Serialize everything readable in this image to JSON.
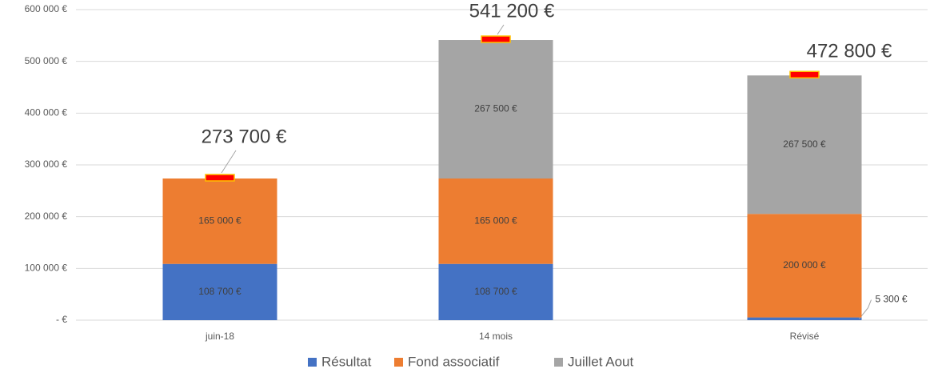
{
  "chart_data": {
    "type": "stacked_bar",
    "categories": [
      "juin-18",
      "14 mois",
      "Révisé"
    ],
    "series": [
      {
        "name": "Résultat",
        "color": "#4472c4",
        "values": [
          108700,
          108700,
          5300
        ],
        "value_labels": [
          "108 700 €",
          "108 700 €",
          "5 300 €"
        ]
      },
      {
        "name": "Fond associatif",
        "color": "#ed7d31",
        "values": [
          165000,
          165000,
          200000
        ],
        "value_labels": [
          "165 000 €",
          "165 000 €",
          "200 000 €"
        ]
      },
      {
        "name": "Juillet Aout",
        "color": "#a5a5a5",
        "values": [
          null,
          267500,
          267500
        ],
        "value_labels": [
          null,
          "267 500 €",
          "267 500 €"
        ]
      }
    ],
    "totals": [
      273700,
      541200,
      472800
    ],
    "totals_labels": [
      "273 700 €",
      "541 200 €",
      "472 800 €"
    ],
    "total_marker_color": "#ff0000",
    "ylim": [
      0,
      600000
    ],
    "yticks": [
      {
        "value": 0,
        "label": "-  €"
      },
      {
        "value": 100000,
        "label": "100 000 €"
      },
      {
        "value": 200000,
        "label": "200 000 €"
      },
      {
        "value": 300000,
        "label": "300 000 €"
      },
      {
        "value": 400000,
        "label": "400 000 €"
      },
      {
        "value": 500000,
        "label": "500 000 €"
      },
      {
        "value": 600000,
        "label": "600 000 €"
      }
    ],
    "grid": true,
    "legend": "bottom"
  }
}
